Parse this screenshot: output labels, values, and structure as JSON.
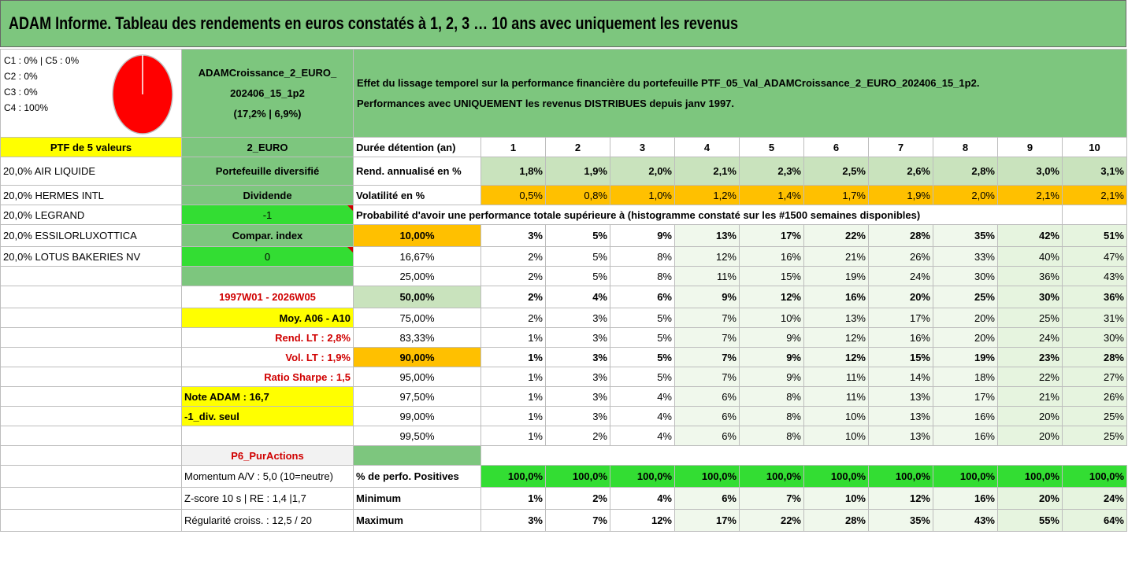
{
  "title": "ADAM Informe. Tableau des rendements en euros constatés à 1, 2, 3 … 10 ans avec uniquement les revenus",
  "pie": {
    "lines": [
      "C1 : 0% | C5 : 0%",
      "C2 : 0%",
      "C3 : 0%",
      "C4 : 100%"
    ],
    "color": "#ff0000"
  },
  "header": {
    "fund_line1": "ADAMCroissance_2_EURO_",
    "fund_line2": "202406_15_1p2",
    "fund_line3": "(17,2% | 6,9%)",
    "effect_line1": "Effet du lissage temporel sur la performance financière du portefeuille PTF_05_Val_ADAMCroissance_2_EURO_202406_15_1p2.",
    "effect_line2": "Performances avec UNIQUEMENT les revenus DISTRIBUES depuis janv 1997."
  },
  "left": {
    "ptf_label": "PTF de 5 valeurs",
    "currency": "2_EURO",
    "holdings": [
      "20,0% AIR LIQUIDE",
      "20,0% HERMES INTL",
      "20,0% LEGRAND",
      "20,0% ESSILORLUXOTTICA",
      "20,0% LOTUS BAKERIES NV"
    ],
    "portfolio": "Portefeuille diversifié",
    "dividende": "Dividende",
    "val_minus1": "-1",
    "compar": "Compar. index",
    "val_zero": "0",
    "period": "1997W01 - 2026W05",
    "moy": "Moy. A06 - A10",
    "rend_lt": "Rend. LT : 2,8%",
    "vol_lt": "Vol. LT : 1,9%",
    "sharpe": "Ratio Sharpe : 1,5",
    "note": "Note ADAM : 16,7",
    "div_seul": "-1_div. seul",
    "p6": "P6_PurActions",
    "momentum": "Momentum A/V : 5,0 (10=neutre)",
    "zscore": "Z-score 10 s | RE : 1,4 |1,7",
    "regularite": "Régularité croiss. : 12,5 / 20"
  },
  "table": {
    "duration_label": "Durée détention (an)",
    "years": [
      "1",
      "2",
      "3",
      "4",
      "5",
      "6",
      "7",
      "8",
      "9",
      "10"
    ],
    "rend_label": "Rend. annualisé en %",
    "rend": [
      "1,8%",
      "1,9%",
      "2,0%",
      "2,1%",
      "2,3%",
      "2,5%",
      "2,6%",
      "2,8%",
      "3,0%",
      "3,1%"
    ],
    "vol_label": "Volatilité en %",
    "vol": [
      "0,5%",
      "0,8%",
      "1,0%",
      "1,2%",
      "1,4%",
      "1,7%",
      "1,9%",
      "2,0%",
      "2,1%",
      "2,1%"
    ],
    "prob_label": "Probabilité d'avoir une performance totale supérieure à (histogramme constaté sur les #1500 semaines disponibles)",
    "quantiles": [
      {
        "p": "10,00%",
        "v": [
          "3%",
          "5%",
          "9%",
          "13%",
          "17%",
          "22%",
          "28%",
          "35%",
          "42%",
          "51%"
        ]
      },
      {
        "p": "16,67%",
        "v": [
          "2%",
          "5%",
          "8%",
          "12%",
          "16%",
          "21%",
          "26%",
          "33%",
          "40%",
          "47%"
        ]
      },
      {
        "p": "25,00%",
        "v": [
          "2%",
          "5%",
          "8%",
          "11%",
          "15%",
          "19%",
          "24%",
          "30%",
          "36%",
          "43%"
        ]
      },
      {
        "p": "50,00%",
        "v": [
          "2%",
          "4%",
          "6%",
          "9%",
          "12%",
          "16%",
          "20%",
          "25%",
          "30%",
          "36%"
        ]
      },
      {
        "p": "75,00%",
        "v": [
          "2%",
          "3%",
          "5%",
          "7%",
          "10%",
          "13%",
          "17%",
          "20%",
          "25%",
          "31%"
        ]
      },
      {
        "p": "83,33%",
        "v": [
          "1%",
          "3%",
          "5%",
          "7%",
          "9%",
          "12%",
          "16%",
          "20%",
          "24%",
          "30%"
        ]
      },
      {
        "p": "90,00%",
        "v": [
          "1%",
          "3%",
          "5%",
          "7%",
          "9%",
          "12%",
          "15%",
          "19%",
          "23%",
          "28%"
        ]
      },
      {
        "p": "95,00%",
        "v": [
          "1%",
          "3%",
          "5%",
          "7%",
          "9%",
          "11%",
          "14%",
          "18%",
          "22%",
          "27%"
        ]
      },
      {
        "p": "97,50%",
        "v": [
          "1%",
          "3%",
          "4%",
          "6%",
          "8%",
          "11%",
          "13%",
          "17%",
          "21%",
          "26%"
        ]
      },
      {
        "p": "99,00%",
        "v": [
          "1%",
          "3%",
          "4%",
          "6%",
          "8%",
          "10%",
          "13%",
          "16%",
          "20%",
          "25%"
        ]
      },
      {
        "p": "99,50%",
        "v": [
          "1%",
          "2%",
          "4%",
          "6%",
          "8%",
          "10%",
          "13%",
          "16%",
          "20%",
          "25%"
        ]
      }
    ],
    "pos_label": "% de perfo. Positives",
    "pos": [
      "100,0%",
      "100,0%",
      "100,0%",
      "100,0%",
      "100,0%",
      "100,0%",
      "100,0%",
      "100,0%",
      "100,0%",
      "100,0%"
    ],
    "min_label": "Minimum",
    "min": [
      "1%",
      "2%",
      "4%",
      "6%",
      "7%",
      "10%",
      "12%",
      "16%",
      "20%",
      "24%"
    ],
    "max_label": "Maximum",
    "max": [
      "3%",
      "7%",
      "12%",
      "17%",
      "22%",
      "28%",
      "35%",
      "43%",
      "55%",
      "64%"
    ]
  }
}
